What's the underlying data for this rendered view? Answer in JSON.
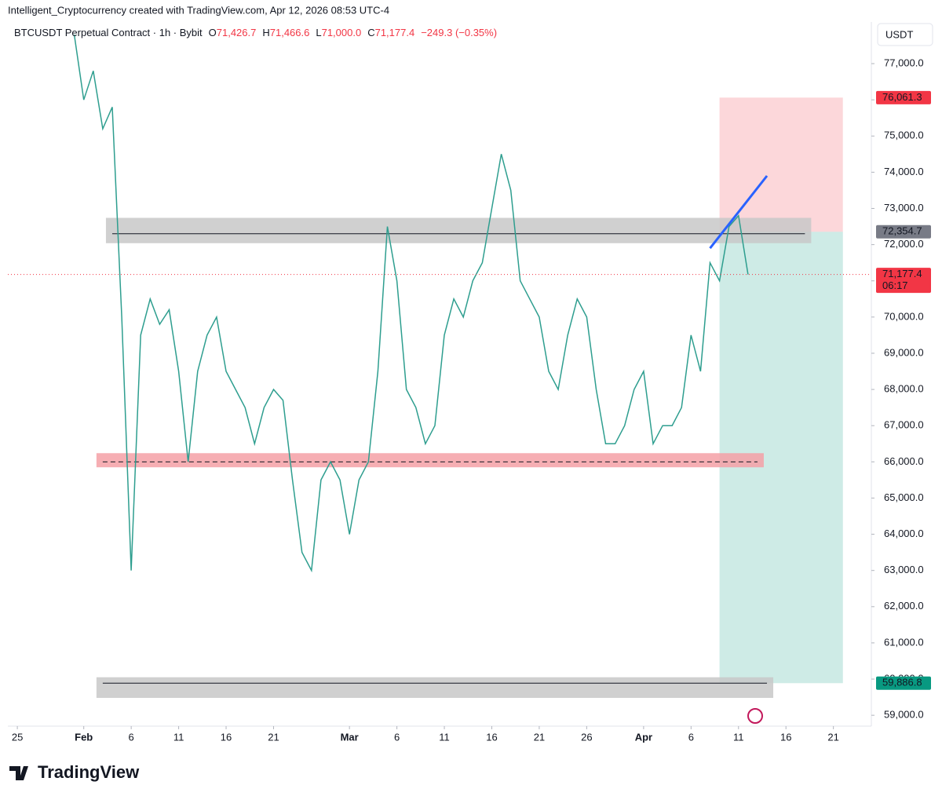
{
  "header": {
    "credit": "Intelligent_Cryptocurrency created with TradingView.com, Apr 12, 2026 08:53 UTC-4",
    "symbol": "BTCUSDT Perpetual Contract · 1h · Bybit",
    "ohlc": [
      {
        "key": "O",
        "value": "71,426.7"
      },
      {
        "key": "H",
        "value": "71,466.6"
      },
      {
        "key": "L",
        "value": "71,000.0"
      },
      {
        "key": "C",
        "value": "71,177.4"
      }
    ],
    "change": "−249.3 (−0.35%)",
    "currency": "USDT"
  },
  "footer": {
    "brand": "TradingView"
  },
  "chart_data": {
    "type": "line",
    "x": [
      "01-31",
      "02-01",
      "02-02",
      "02-03",
      "02-04",
      "02-05",
      "02-06",
      "02-07",
      "02-08",
      "02-09",
      "02-10",
      "02-11",
      "02-12",
      "02-13",
      "02-14",
      "02-15",
      "02-16",
      "02-17",
      "02-18",
      "02-19",
      "02-20",
      "02-21",
      "02-22",
      "02-23",
      "02-24",
      "02-25",
      "02-26",
      "02-27",
      "02-28",
      "03-01",
      "03-02",
      "03-03",
      "03-04",
      "03-05",
      "03-06",
      "03-07",
      "03-08",
      "03-09",
      "03-10",
      "03-11",
      "03-12",
      "03-13",
      "03-14",
      "03-15",
      "03-16",
      "03-17",
      "03-18",
      "03-19",
      "03-20",
      "03-21",
      "03-22",
      "03-23",
      "03-24",
      "03-25",
      "03-26",
      "03-27",
      "03-28",
      "03-29",
      "03-30",
      "03-31",
      "04-01",
      "04-02",
      "04-03",
      "04-04",
      "04-05",
      "04-06",
      "04-07",
      "04-08",
      "04-09",
      "04-10",
      "04-11",
      "04-12"
    ],
    "series": [
      {
        "name": "BTCUSDT",
        "color": "#2e9e8f",
        "values": [
          77800,
          76000,
          76800,
          75200,
          75800,
          70000,
          63000,
          69500,
          70500,
          69800,
          70200,
          68500,
          66000,
          68500,
          69500,
          70000,
          68500,
          68000,
          67500,
          66500,
          67500,
          68000,
          67700,
          65500,
          63500,
          63000,
          65500,
          66000,
          65500,
          64000,
          65500,
          66000,
          68500,
          72500,
          71000,
          68000,
          67500,
          66500,
          67000,
          69500,
          70500,
          70000,
          71000,
          71500,
          73000,
          74500,
          73500,
          71000,
          70500,
          70000,
          68500,
          68000,
          69500,
          70500,
          70000,
          68000,
          66500,
          66500,
          67000,
          68000,
          68500,
          66500,
          67000,
          67000,
          67500,
          69500,
          68500,
          71500,
          71000,
          72500,
          72800,
          71177.4
        ]
      }
    ],
    "xlim": [
      "01-24",
      "04-25"
    ],
    "xticks": [
      {
        "value": "01-25",
        "label": "25"
      },
      {
        "value": "02-01",
        "label": "Feb"
      },
      {
        "value": "02-06",
        "label": "6"
      },
      {
        "value": "02-11",
        "label": "11"
      },
      {
        "value": "02-16",
        "label": "16"
      },
      {
        "value": "02-21",
        "label": "21"
      },
      {
        "value": "03-01",
        "label": "Mar"
      },
      {
        "value": "03-06",
        "label": "6"
      },
      {
        "value": "03-11",
        "label": "11"
      },
      {
        "value": "03-16",
        "label": "16"
      },
      {
        "value": "03-21",
        "label": "21"
      },
      {
        "value": "03-26",
        "label": "26"
      },
      {
        "value": "04-01",
        "label": "Apr"
      },
      {
        "value": "04-06",
        "label": "6"
      },
      {
        "value": "04-11",
        "label": "11"
      },
      {
        "value": "04-16",
        "label": "16"
      },
      {
        "value": "04-21",
        "label": "21"
      }
    ],
    "ylim": [
      58700,
      78150
    ],
    "yticks": [
      {
        "value": 59000,
        "label": "59,000.0"
      },
      {
        "value": 60000,
        "label": "60,000.0"
      },
      {
        "value": 61000,
        "label": "61,000.0"
      },
      {
        "value": 62000,
        "label": "62,000.0"
      },
      {
        "value": 63000,
        "label": "63,000.0"
      },
      {
        "value": 64000,
        "label": "64,000.0"
      },
      {
        "value": 65000,
        "label": "65,000.0"
      },
      {
        "value": 66000,
        "label": "66,000.0"
      },
      {
        "value": 67000,
        "label": "67,000.0"
      },
      {
        "value": 68000,
        "label": "68,000.0"
      },
      {
        "value": 69000,
        "label": "69,000.0"
      },
      {
        "value": 70000,
        "label": "70,000.0"
      },
      {
        "value": 71000,
        "label": "71,000.0"
      },
      {
        "value": 72000,
        "label": "72,000.0"
      },
      {
        "value": 73000,
        "label": "73,000.0"
      },
      {
        "value": 74000,
        "label": "74,000.0"
      },
      {
        "value": 75000,
        "label": "75,000.0"
      },
      {
        "value": 76000,
        "label": "76,000.0"
      },
      {
        "value": 77000,
        "label": "77,000.0"
      }
    ],
    "zones": [
      {
        "start": "02-04",
        "end": "04-18",
        "low": 72040,
        "high": 72740,
        "line": 72300,
        "color": "#c8c8c8"
      },
      {
        "start": "02-03",
        "end": "04-13",
        "low": 65850,
        "high": 66240,
        "line": 66000,
        "color": "#f5a0a6"
      },
      {
        "start": "02-03",
        "end": "04-14",
        "low": 59480,
        "high": 60050,
        "line": 59886.8,
        "color": "#c8c8c8"
      }
    ],
    "position": {
      "start": "04-09",
      "end": "04-22",
      "entry": 72354.7,
      "stop": 76061.3,
      "target": 59886.8
    },
    "trendline": {
      "x": [
        "04-08",
        "04-14"
      ],
      "values": [
        71900,
        73900
      ],
      "color": "#2962ff"
    },
    "price_labels": [
      {
        "value": 76061.3,
        "label": "76,061.3",
        "color": "#f23645"
      },
      {
        "value": 72354.7,
        "label": "72,354.7",
        "color": "#787b86"
      },
      {
        "value": 71177.4,
        "label": "71,177.4",
        "color": "#f23645"
      },
      {
        "value": 59886.8,
        "label": "59,886.8",
        "color": "#089981"
      }
    ],
    "countdown": "06:17"
  }
}
